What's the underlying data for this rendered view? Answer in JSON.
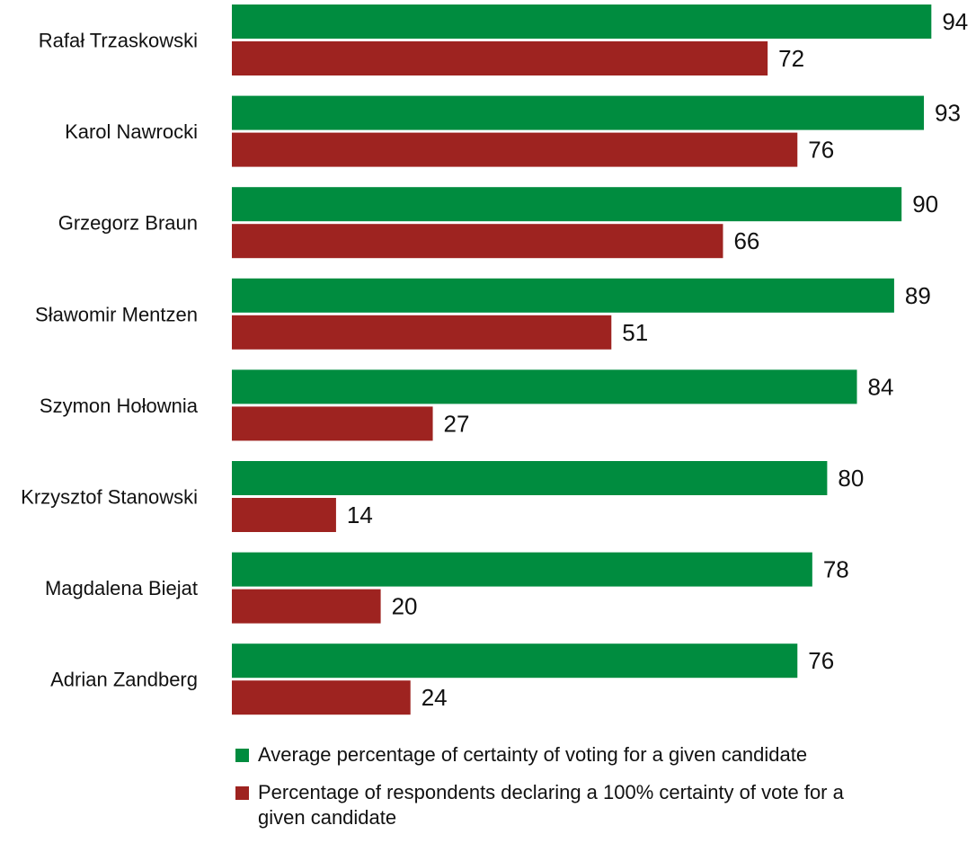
{
  "chart_data": {
    "type": "bar",
    "orientation": "horizontal",
    "categories": [
      "Rafał Trzaskowski",
      "Karol Nawrocki",
      "Grzegorz Braun",
      "Sławomir Mentzen",
      "Szymon Hołownia",
      "Krzysztof Stanowski",
      "Magdalena Biejat",
      "Adrian Zandberg"
    ],
    "series": [
      {
        "name": "Average percentage of certainty of voting for a given candidate",
        "color": "#008c3f",
        "values": [
          94,
          93,
          90,
          89,
          84,
          80,
          78,
          76
        ]
      },
      {
        "name": "Percentage of respondents declaring a 100% certainty of vote for a given candidate",
        "color": "#9e2320",
        "values": [
          72,
          76,
          66,
          51,
          27,
          14,
          20,
          24
        ]
      }
    ],
    "xlim": [
      0,
      100
    ],
    "grid": false,
    "legend_position": "bottom"
  }
}
